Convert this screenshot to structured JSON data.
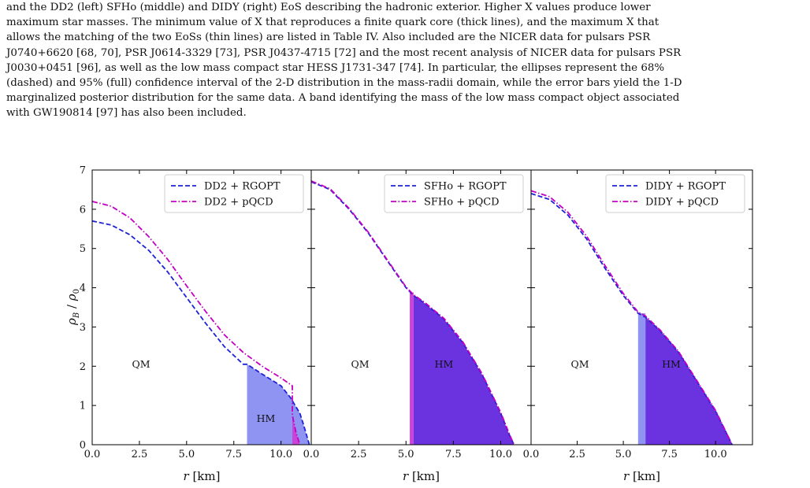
{
  "caption": {
    "lines": [
      "and the DD2 (left) SFHo (middle) and DIDY (right) EoS describing the hadronic exterior. Higher X values produce lower",
      "maximum star masses. The minimum value of X that reproduces a finite quark core (thick lines), and the maximum X that",
      "allows the matching of the two EoSs (thin lines) are listed in Table IV. Also included are the NICER data for pulsars PSR",
      "J0740+6620 [68, 70], PSR J0614-3329 [73], PSR J0437-4715 [72] and the most recent analysis of NICER data for pulsars PSR",
      "J0030+0451 [96], as well as the low mass compact star HESS J1731-347 [74]. In particular, the ellipses represent the 68%",
      "(dashed) and 95% (full) confidence interval of the 2-D distribution in the mass-radii domain, while the error bars yield the 1-D",
      "marginalized posterior distribution for the same data. A band identifying the mass of the low mass compact object associated",
      "with GW190814 [97] has also been included."
    ]
  },
  "chart_data": [
    {
      "type": "line",
      "panel": "left",
      "xlabel": "r [km]",
      "ylabel": "ρB/ρ0",
      "xlim": [
        0,
        11.6
      ],
      "ylim": [
        0,
        7
      ],
      "xticks": [
        "0.0",
        "2.5",
        "5.0",
        "7.5",
        "10.0"
      ],
      "yticks": [
        "0",
        "1",
        "2",
        "3",
        "4",
        "5",
        "6",
        "7"
      ],
      "legend_position": "top-right",
      "region_labels": [
        "QM",
        "HM"
      ],
      "series": [
        {
          "name": "DD2 + RGOPT",
          "style": "dashed",
          "color": "#1f22d6",
          "x": [
            0,
            1,
            2,
            3,
            4,
            5,
            6,
            7,
            8,
            8.2,
            9,
            10,
            10.5,
            11,
            11.2,
            11.5
          ],
          "y": [
            5.7,
            5.6,
            5.35,
            4.95,
            4.4,
            3.75,
            3.1,
            2.5,
            2.05,
            2.05,
            1.8,
            1.5,
            1.2,
            0.8,
            0.5,
            0.0
          ]
        },
        {
          "name": "DD2 + pQCD",
          "style": "dashdot",
          "color": "#c300c3",
          "x": [
            0,
            1,
            2,
            3,
            4,
            5,
            6,
            7,
            8,
            9,
            10,
            10.6,
            10.6,
            10.8,
            11.0
          ],
          "y": [
            6.2,
            6.08,
            5.78,
            5.3,
            4.72,
            4.05,
            3.4,
            2.8,
            2.35,
            2.0,
            1.7,
            1.5,
            0.75,
            0.3,
            0.0
          ]
        }
      ]
    },
    {
      "type": "line",
      "panel": "middle",
      "xlabel": "r [km]",
      "xlim": [
        0,
        11.6
      ],
      "ylim": [
        0,
        7
      ],
      "xticks": [
        "0.0",
        "2.5",
        "5.0",
        "7.5",
        "10.0"
      ],
      "legend_position": "top-right",
      "region_labels": [
        "QM",
        "HM"
      ],
      "series": [
        {
          "name": "SFHo + RGOPT",
          "style": "dashed",
          "color": "#1f22d6",
          "x": [
            0,
            1,
            2,
            3,
            4,
            5,
            5.4,
            6,
            7,
            8,
            9,
            10,
            10.5,
            10.7
          ],
          "y": [
            6.7,
            6.5,
            6.0,
            5.4,
            4.7,
            4.0,
            3.8,
            3.6,
            3.2,
            2.6,
            1.8,
            0.8,
            0.2,
            0.0
          ]
        },
        {
          "name": "SFHo + pQCD",
          "style": "dashdot",
          "color": "#c300c3",
          "x": [
            0,
            1,
            2,
            3,
            4,
            5,
            5.4,
            6,
            7,
            8,
            9,
            10,
            10.5,
            10.7
          ],
          "y": [
            6.72,
            6.52,
            6.02,
            5.42,
            4.72,
            4.02,
            3.82,
            3.62,
            3.22,
            2.62,
            1.82,
            0.82,
            0.22,
            0.0
          ]
        }
      ]
    },
    {
      "type": "line",
      "panel": "right",
      "xlabel": "r [km]",
      "xlim": [
        0,
        12.0
      ],
      "ylim": [
        0,
        7
      ],
      "xticks": [
        "0.0",
        "2.5",
        "5.0",
        "7.5",
        "10.0"
      ],
      "legend_position": "top-right",
      "region_labels": [
        "QM",
        "HM"
      ],
      "series": [
        {
          "name": "DIDY + RGOPT",
          "style": "dashed",
          "color": "#1f22d6",
          "x": [
            0,
            1,
            2,
            3,
            4,
            5,
            5.8,
            6.2,
            7,
            8,
            9,
            10,
            10.9
          ],
          "y": [
            6.4,
            6.25,
            5.85,
            5.25,
            4.5,
            3.8,
            3.35,
            3.25,
            2.9,
            2.35,
            1.6,
            0.85,
            0.0
          ]
        },
        {
          "name": "DIDY + pQCD",
          "style": "dashdot",
          "color": "#c300c3",
          "x": [
            0,
            1,
            2,
            3,
            4,
            5,
            5.8,
            6.2,
            7,
            8,
            9,
            10,
            10.9
          ],
          "y": [
            6.47,
            6.32,
            5.92,
            5.32,
            4.57,
            3.85,
            3.38,
            3.28,
            2.92,
            2.37,
            1.62,
            0.87,
            0.0
          ]
        }
      ]
    }
  ],
  "colors": {
    "rgopt": "#1f22d6",
    "pqcd": "#c300c3",
    "hm_fill_dark": "#6b33e0",
    "hm_fill_light": "#8f93f2",
    "hm_fill_pink": "#cc44d6"
  }
}
